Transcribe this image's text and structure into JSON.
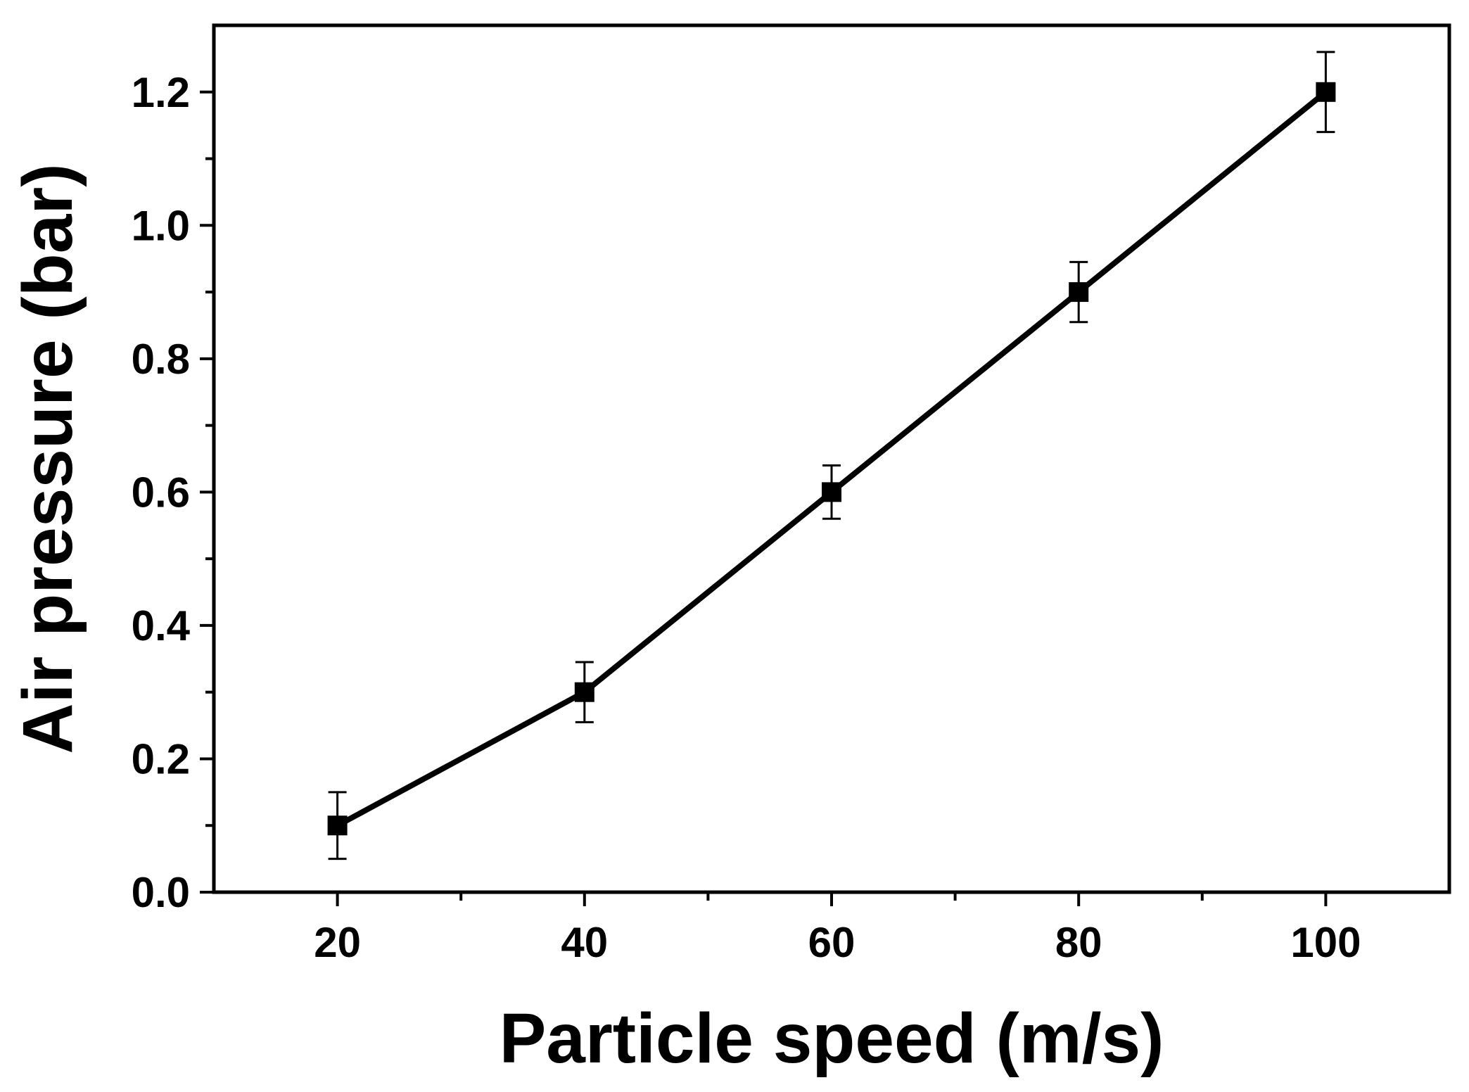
{
  "chart_data": {
    "type": "line",
    "title": "",
    "xlabel": "Particle speed (m/s)",
    "ylabel": "Air pressure (bar)",
    "xlim": [
      10,
      110
    ],
    "ylim": [
      0,
      1.3
    ],
    "x_ticks": [
      20,
      40,
      60,
      80,
      100
    ],
    "x_tick_labels": [
      "20",
      "40",
      "60",
      "80",
      "100"
    ],
    "x_minor_ticks": [
      30,
      50,
      70,
      90
    ],
    "y_ticks": [
      0.0,
      0.2,
      0.4,
      0.6,
      0.8,
      1.0,
      1.2
    ],
    "y_tick_labels": [
      "0.0",
      "0.2",
      "0.4",
      "0.6",
      "0.8",
      "1.0",
      "1.2"
    ],
    "y_minor_ticks": [
      0.1,
      0.3,
      0.5,
      0.7,
      0.9,
      1.1
    ],
    "grid": false,
    "legend": "none",
    "series": [
      {
        "x": [
          20,
          40,
          60,
          80,
          100
        ],
        "values": [
          0.1,
          0.3,
          0.6,
          0.9,
          1.2
        ],
        "error_low": [
          0.05,
          0.255,
          0.56,
          0.855,
          1.14
        ],
        "error_high": [
          0.15,
          0.345,
          0.64,
          0.945,
          1.26
        ],
        "color": "#000000",
        "marker": "square"
      }
    ]
  }
}
